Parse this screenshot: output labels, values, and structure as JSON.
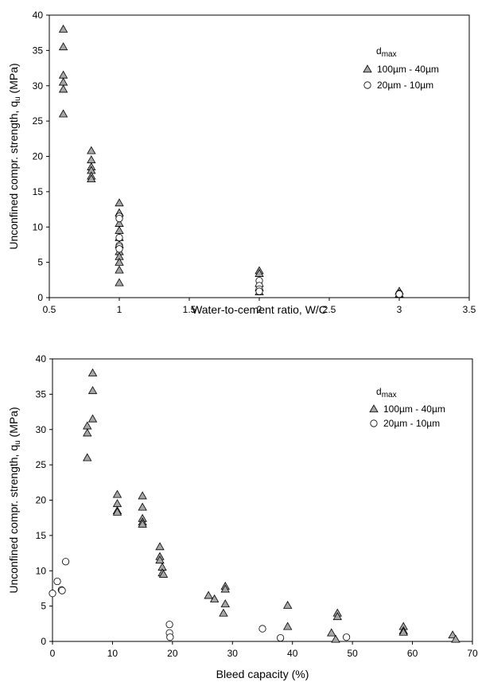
{
  "chart_data": [
    {
      "type": "scatter",
      "xlabel": "Water-to-cement ratio, W/C",
      "ylabel_main": "Unconfined compr. strength, q",
      "ylabel_sub": "u",
      "ylabel_unit": " (MPa)",
      "xlim": [
        0.5,
        3.5
      ],
      "ylim": [
        0,
        40
      ],
      "xticks": [
        "0.5",
        "1",
        "1.5",
        "2",
        "2.5",
        "3",
        "3.5"
      ],
      "yticks": [
        "0",
        "5",
        "10",
        "15",
        "20",
        "25",
        "30",
        "35",
        "40"
      ],
      "legend_title_main": "d",
      "legend_title_sub": "max",
      "legend_placement": "top-right",
      "grid": false,
      "series": [
        {
          "name": "100µm - 40µm",
          "marker": "triangle",
          "color": "#a6a6a6",
          "points": [
            [
              0.6,
              38.0
            ],
            [
              0.6,
              35.5
            ],
            [
              0.6,
              31.5
            ],
            [
              0.6,
              30.5
            ],
            [
              0.6,
              29.5
            ],
            [
              0.6,
              26.0
            ],
            [
              0.8,
              20.8
            ],
            [
              0.8,
              19.5
            ],
            [
              0.8,
              18.5
            ],
            [
              0.8,
              18.0
            ],
            [
              0.8,
              17.2
            ],
            [
              0.8,
              16.8
            ],
            [
              1,
              13.4
            ],
            [
              1,
              12.0
            ],
            [
              1,
              10.5
            ],
            [
              1,
              9.5
            ],
            [
              1,
              8.5
            ],
            [
              1,
              7.5
            ],
            [
              1,
              6.5
            ],
            [
              1,
              5.8
            ],
            [
              1,
              5.0
            ],
            [
              1,
              3.9
            ],
            [
              1,
              2.1
            ],
            [
              2,
              3.8
            ],
            [
              2,
              3.4
            ],
            [
              2,
              2.0
            ],
            [
              2,
              1.4
            ],
            [
              2,
              0.8
            ],
            [
              3,
              0.9
            ],
            [
              3,
              0.5
            ]
          ]
        },
        {
          "name": "20µm - 10µm",
          "marker": "circle",
          "color": "#ffffff",
          "points": [
            [
              1,
              11.5
            ],
            [
              1,
              11.2
            ],
            [
              1,
              8.5
            ],
            [
              1,
              7.4
            ],
            [
              1,
              7.2
            ],
            [
              1,
              6.9
            ],
            [
              2,
              2.4
            ],
            [
              2,
              1.7
            ],
            [
              2,
              1.2
            ],
            [
              2,
              0.9
            ],
            [
              3,
              0.6
            ],
            [
              3,
              0.5
            ]
          ]
        }
      ]
    },
    {
      "type": "scatter",
      "xlabel": "Bleed capacity (%)",
      "ylabel_main": "Unconfined compr. strength, q",
      "ylabel_sub": "u",
      "ylabel_unit": " (MPa)",
      "xlim": [
        0,
        70
      ],
      "ylim": [
        0,
        40
      ],
      "xticks": [
        "0",
        "10",
        "20",
        "30",
        "40",
        "50",
        "60",
        "70"
      ],
      "yticks": [
        "0",
        "5",
        "10",
        "15",
        "20",
        "25",
        "30",
        "35",
        "40"
      ],
      "legend_title_main": "d",
      "legend_title_sub": "max",
      "legend_placement": "top-right",
      "grid": false,
      "series": [
        {
          "name": "100µm - 40µm",
          "marker": "triangle",
          "color": "#a6a6a6",
          "points": [
            [
              5.8,
              30.5
            ],
            [
              5.8,
              29.5
            ],
            [
              5.8,
              26.0
            ],
            [
              6.7,
              38.0
            ],
            [
              6.7,
              35.5
            ],
            [
              6.7,
              31.5
            ],
            [
              10.8,
              20.8
            ],
            [
              10.8,
              19.5
            ],
            [
              10.8,
              18.5
            ],
            [
              10.8,
              18.3
            ],
            [
              15.0,
              20.6
            ],
            [
              15.0,
              19.0
            ],
            [
              15.0,
              17.4
            ],
            [
              15.0,
              16.9
            ],
            [
              15.0,
              16.6
            ],
            [
              17.9,
              13.4
            ],
            [
              17.9,
              12.0
            ],
            [
              17.9,
              11.5
            ],
            [
              18.3,
              10.5
            ],
            [
              18.3,
              9.7
            ],
            [
              18.5,
              9.5
            ],
            [
              26.0,
              6.5
            ],
            [
              27.0,
              6.0
            ],
            [
              28.8,
              7.8
            ],
            [
              28.8,
              7.4
            ],
            [
              28.8,
              5.3
            ],
            [
              28.5,
              4.0
            ],
            [
              39.2,
              5.1
            ],
            [
              39.2,
              2.1
            ],
            [
              46.5,
              1.2
            ],
            [
              47.2,
              0.3
            ],
            [
              47.5,
              4.0
            ],
            [
              47.5,
              3.5
            ],
            [
              58.5,
              2.1
            ],
            [
              58.5,
              1.5
            ],
            [
              58.5,
              1.3
            ],
            [
              66.7,
              0.9
            ],
            [
              67.2,
              0.3
            ]
          ]
        },
        {
          "name": "20µm - 10µm",
          "marker": "circle",
          "color": "#ffffff",
          "points": [
            [
              0.0,
              6.8
            ],
            [
              0.8,
              8.5
            ],
            [
              1.5,
              7.3
            ],
            [
              1.6,
              7.2
            ],
            [
              2.2,
              11.3
            ],
            [
              19.5,
              2.4
            ],
            [
              19.5,
              1.2
            ],
            [
              19.6,
              0.6
            ],
            [
              35.0,
              1.8
            ],
            [
              38.0,
              0.5
            ],
            [
              49.0,
              0.6
            ]
          ]
        }
      ]
    }
  ]
}
